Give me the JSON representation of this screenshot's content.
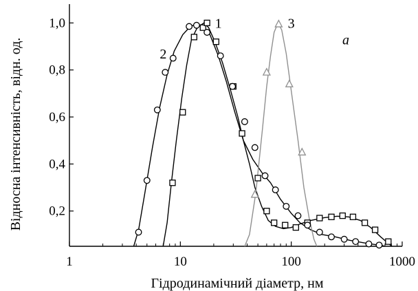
{
  "chart_data": {
    "type": "line",
    "title": "",
    "xlabel": "Гідродинамічний діаметр, нм",
    "ylabel": "Відносна інтенсивність, відн. од.",
    "xscale": "log",
    "xlim": [
      1,
      1000
    ],
    "ylim": [
      0.05,
      1.08
    ],
    "grid": false,
    "x_ticks": [
      {
        "value": 1,
        "label": "1"
      },
      {
        "value": 10,
        "label": "10"
      },
      {
        "value": 100,
        "label": "100"
      },
      {
        "value": 1000,
        "label": "1000"
      }
    ],
    "y_ticks": [
      {
        "value": 0.2,
        "label": "0,2"
      },
      {
        "value": 0.4,
        "label": "0,4"
      },
      {
        "value": 0.6,
        "label": "0,6"
      },
      {
        "value": 0.8,
        "label": "0,8"
      },
      {
        "value": 1.0,
        "label": "1,0"
      }
    ],
    "panel_label": "a",
    "series": [
      {
        "label": "1",
        "marker": "square",
        "color": "#000000",
        "curve": [
          [
            7.0,
            0.05
          ],
          [
            7.6,
            0.15
          ],
          [
            8.3,
            0.32
          ],
          [
            9.2,
            0.5
          ],
          [
            10.3,
            0.68
          ],
          [
            11.4,
            0.82
          ],
          [
            12.6,
            0.93
          ],
          [
            14.2,
            0.98
          ],
          [
            16.3,
            1.0
          ],
          [
            18.0,
            0.98
          ],
          [
            20.5,
            0.92
          ],
          [
            24.0,
            0.83
          ],
          [
            28.5,
            0.71
          ],
          [
            33.0,
            0.6
          ],
          [
            37.0,
            0.5
          ],
          [
            42.0,
            0.4
          ],
          [
            47.0,
            0.3
          ],
          [
            54.0,
            0.22
          ],
          [
            62.0,
            0.16
          ],
          [
            72.0,
            0.135
          ],
          [
            85.0,
            0.125
          ],
          [
            100.0,
            0.13
          ],
          [
            120.0,
            0.145
          ],
          [
            150.0,
            0.16
          ],
          [
            200.0,
            0.172
          ],
          [
            260.0,
            0.178
          ],
          [
            330.0,
            0.175
          ],
          [
            420.0,
            0.16
          ],
          [
            520.0,
            0.13
          ],
          [
            640.0,
            0.09
          ],
          [
            760.0,
            0.06
          ],
          [
            810.0,
            0.05
          ]
        ],
        "markers": [
          [
            8.5,
            0.32
          ],
          [
            10.5,
            0.62
          ],
          [
            13.3,
            0.94
          ],
          [
            16.0,
            0.98
          ],
          [
            17.4,
            1.0
          ],
          [
            21.0,
            0.92
          ],
          [
            30.0,
            0.73
          ],
          [
            36.0,
            0.53
          ],
          [
            50.0,
            0.34
          ],
          [
            60.0,
            0.2
          ],
          [
            70.0,
            0.15
          ],
          [
            88.0,
            0.14
          ],
          [
            110.0,
            0.13
          ],
          [
            140.0,
            0.15
          ],
          [
            180.0,
            0.17
          ],
          [
            230.0,
            0.175
          ],
          [
            290.0,
            0.18
          ],
          [
            360.0,
            0.175
          ],
          [
            460.0,
            0.15
          ],
          [
            570.0,
            0.12
          ],
          [
            750.0,
            0.07
          ]
        ]
      },
      {
        "label": "2",
        "marker": "circle",
        "color": "#000000",
        "curve": [
          [
            3.8,
            0.05
          ],
          [
            4.2,
            0.12
          ],
          [
            4.8,
            0.28
          ],
          [
            5.6,
            0.47
          ],
          [
            6.5,
            0.64
          ],
          [
            7.6,
            0.78
          ],
          [
            8.8,
            0.88
          ],
          [
            10.5,
            0.95
          ],
          [
            12.3,
            0.985
          ],
          [
            14.0,
            0.995
          ],
          [
            16.0,
            0.985
          ],
          [
            18.5,
            0.95
          ],
          [
            22.0,
            0.86
          ],
          [
            26.0,
            0.75
          ],
          [
            31.0,
            0.62
          ],
          [
            37.0,
            0.5
          ],
          [
            45.0,
            0.42
          ],
          [
            55.0,
            0.36
          ],
          [
            65.0,
            0.32
          ],
          [
            80.0,
            0.25
          ],
          [
            100.0,
            0.19
          ],
          [
            120.0,
            0.15
          ],
          [
            150.0,
            0.12
          ],
          [
            190.0,
            0.1
          ],
          [
            250.0,
            0.09
          ],
          [
            340.0,
            0.075
          ],
          [
            450.0,
            0.065
          ],
          [
            560.0,
            0.058
          ],
          [
            660.0,
            0.053
          ],
          [
            700.0,
            0.05
          ]
        ],
        "markers": [
          [
            4.2,
            0.11
          ],
          [
            5.0,
            0.33
          ],
          [
            6.2,
            0.63
          ],
          [
            7.3,
            0.79
          ],
          [
            8.6,
            0.85
          ],
          [
            12.0,
            0.985
          ],
          [
            14.0,
            0.99
          ],
          [
            17.4,
            0.96
          ],
          [
            23.0,
            0.86
          ],
          [
            29.5,
            0.73
          ],
          [
            38.0,
            0.58
          ],
          [
            47.0,
            0.47
          ],
          [
            58.0,
            0.35
          ],
          [
            72.0,
            0.29
          ],
          [
            90.0,
            0.22
          ],
          [
            115.0,
            0.18
          ],
          [
            140.0,
            0.14
          ],
          [
            180.0,
            0.11
          ],
          [
            230.0,
            0.09
          ],
          [
            300.0,
            0.08
          ],
          [
            380.0,
            0.07
          ],
          [
            500.0,
            0.06
          ],
          [
            620.0,
            0.055
          ]
        ]
      },
      {
        "label": "3",
        "marker": "triangle",
        "color": "#909090",
        "curve": [
          [
            38.0,
            0.05
          ],
          [
            42.0,
            0.1
          ],
          [
            48.0,
            0.28
          ],
          [
            55.0,
            0.55
          ],
          [
            60.0,
            0.73
          ],
          [
            65.0,
            0.86
          ],
          [
            70.0,
            0.96
          ],
          [
            76.0,
            1.0
          ],
          [
            82.0,
            0.97
          ],
          [
            90.0,
            0.87
          ],
          [
            100.0,
            0.71
          ],
          [
            115.0,
            0.5
          ],
          [
            130.0,
            0.3
          ],
          [
            145.0,
            0.17
          ],
          [
            160.0,
            0.08
          ],
          [
            170.0,
            0.05
          ]
        ],
        "markers": [
          [
            47.0,
            0.27
          ],
          [
            60.0,
            0.79
          ],
          [
            77.0,
            0.995
          ],
          [
            96.0,
            0.74
          ],
          [
            125.0,
            0.45
          ]
        ]
      }
    ],
    "annotations": [
      {
        "text": "1",
        "x": 22.0,
        "y": 1.0
      },
      {
        "text": "2",
        "x": 7.0,
        "y": 0.87
      },
      {
        "text": "3",
        "x": 100.0,
        "y": 1.0
      },
      {
        "text": "a",
        "x": 310.0,
        "y": 0.93
      }
    ]
  }
}
